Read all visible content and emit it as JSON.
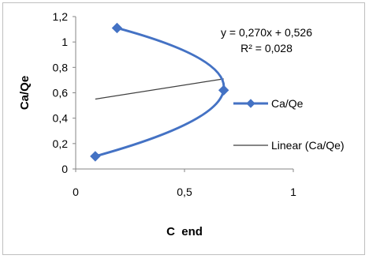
{
  "chart_data": {
    "type": "scatter",
    "xlabel": "C  end",
    "ylabel": "Ca/Qe",
    "xlim": [
      0,
      1
    ],
    "ylim": [
      0,
      1.2
    ],
    "x_ticks": [
      "0",
      "0,5",
      "1"
    ],
    "y_ticks": [
      "0",
      "0,2",
      "0,4",
      "0,6",
      "0,8",
      "1",
      "1,2"
    ],
    "series": [
      {
        "name": "Ca/Qe",
        "style": "smoothed line with diamond markers",
        "color": "#4472c4",
        "points": [
          {
            "x": 0.09,
            "y": 0.1
          },
          {
            "x": 0.68,
            "y": 0.62
          },
          {
            "x": 0.19,
            "y": 1.11
          }
        ]
      },
      {
        "name": "Linear (Ca/Qe)",
        "style": "thin trendline",
        "color": "#3f3f3f",
        "x_range": [
          0.09,
          0.68
        ],
        "slope": 0.27,
        "intercept": 0.526
      }
    ],
    "equation_label": "y = 0,270x + 0,526",
    "r2_label": "R² = 0,028",
    "legend_position": "right",
    "grid": false
  }
}
